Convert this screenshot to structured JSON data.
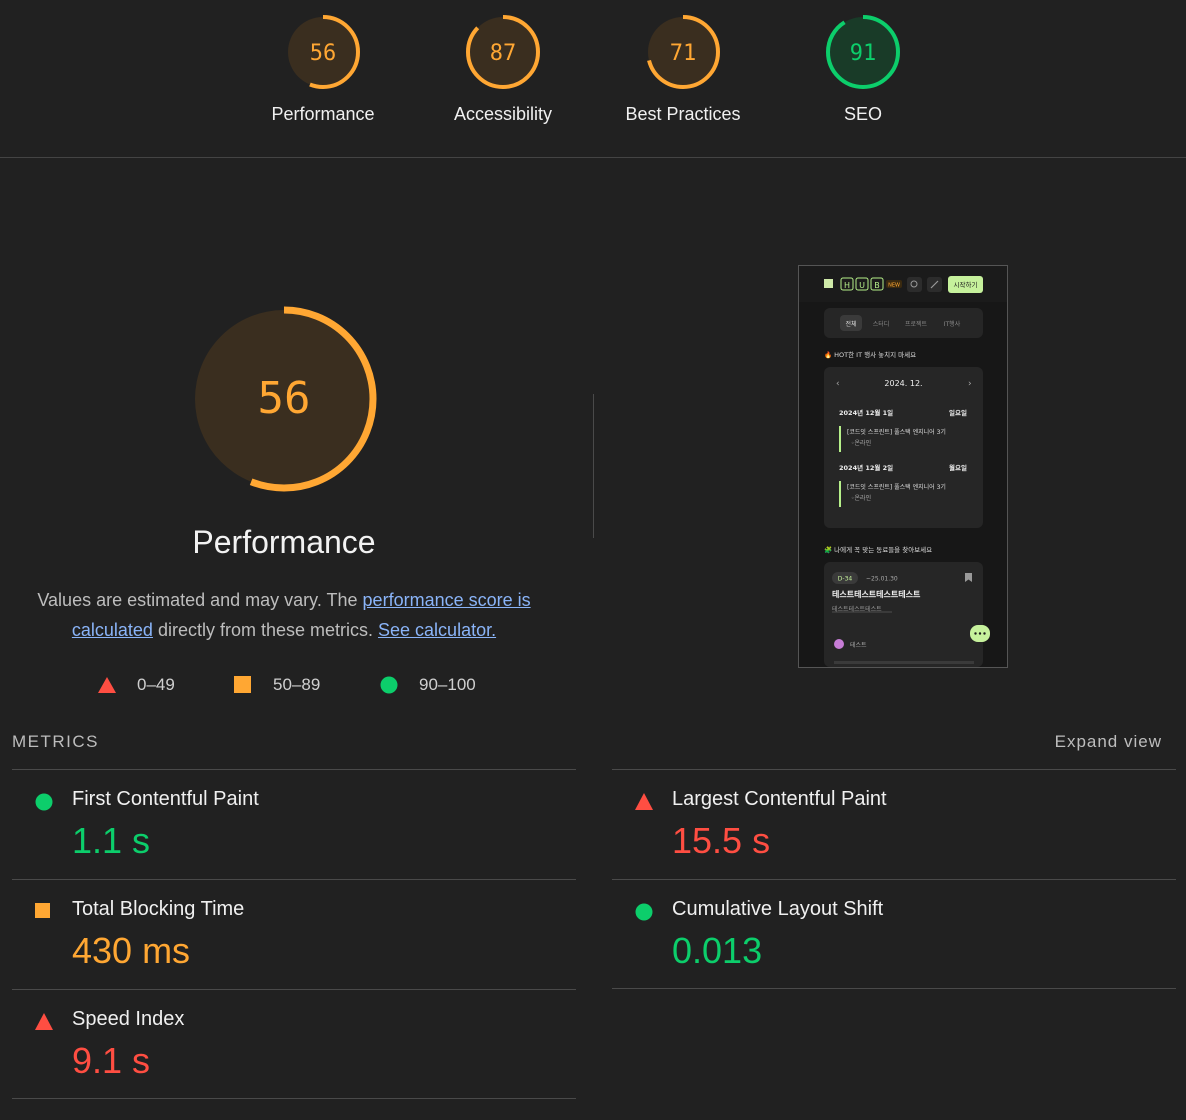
{
  "categories": [
    {
      "label": "Performance",
      "score": "56",
      "color": "#ffa733",
      "bg": "#3a2e1f"
    },
    {
      "label": "Accessibility",
      "score": "87",
      "color": "#ffa733",
      "bg": "#3a2e1f"
    },
    {
      "label": "Best Practices",
      "score": "71",
      "color": "#ffa733",
      "bg": "#3a2e1f"
    },
    {
      "label": "SEO",
      "score": "91",
      "color": "#0cce6b",
      "bg": "#193b28"
    }
  ],
  "main": {
    "score": "56",
    "title": "Performance",
    "desc_prefix": "Values are estimated and may vary. The ",
    "desc_link": "performance score is calculated",
    "desc_mid": " directly from these metrics. ",
    "desc_calc": "See calculator.",
    "legend": [
      {
        "icon": "fail-triangle-icon",
        "label": "0–49"
      },
      {
        "icon": "average-square-icon",
        "label": "50–89"
      },
      {
        "icon": "pass-circle-icon",
        "label": "90–100"
      }
    ]
  },
  "screenshot": {
    "logo_letters": [
      "H",
      "U",
      "B"
    ],
    "new_badge": "NEW",
    "start_button": "시작하기",
    "tabs": [
      "전체",
      "스터디",
      "프로젝트",
      "IT행사"
    ],
    "hot_title": "🔥 HOT한 IT 행사 놓치지 마세요",
    "month": "2024. 12.",
    "days": [
      {
        "date": "2024년 12월 1일",
        "weekday": "일요일",
        "event": "[코드잇 스프린트] 풀스택 엔지니어 3기",
        "place": "◦온라인"
      },
      {
        "date": "2024년 12월 2일",
        "weekday": "월요일",
        "event": "[코드잇 스프린트] 풀스택 엔지니어 3기",
        "place": "◦온라인"
      }
    ],
    "peers_title": "🧩 나에게 꼭 맞는 동료들을 찾아보세요",
    "card": {
      "dday": "D-34",
      "deadline": "~25.01.30",
      "title": "테스트테스트테스트테스트",
      "subtitle": "테스트테스트테스트",
      "author": "테스트"
    }
  },
  "metrics": {
    "heading": "METRICS",
    "expand": "Expand view",
    "items": [
      {
        "name": "First Contentful Paint",
        "value": "1.1 s",
        "status": "pass"
      },
      {
        "name": "Largest Contentful Paint",
        "value": "15.5 s",
        "status": "fail"
      },
      {
        "name": "Total Blocking Time",
        "value": "430 ms",
        "status": "average"
      },
      {
        "name": "Cumulative Layout Shift",
        "value": "0.013",
        "status": "pass"
      },
      {
        "name": "Speed Index",
        "value": "9.1 s",
        "status": "fail"
      }
    ]
  },
  "colors": {
    "pass": "#0cce6b",
    "average": "#ffa733",
    "fail": "#ff4e42",
    "link": "#8ab4f8"
  }
}
